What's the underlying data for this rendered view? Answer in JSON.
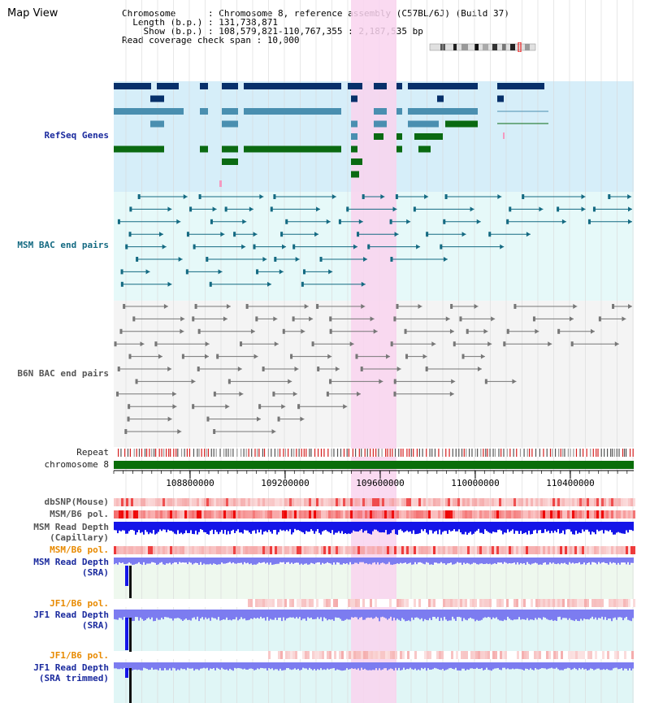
{
  "header": {
    "title": "Map View",
    "info_lines": [
      "Chromosome      : Chromosome 8, reference assembly (C57BL/6J) (Build 37)",
      "  Length (b.p.) : 131,738,871",
      "    Show (b.p.) : 108,579,821-110,767,355 : 2,187,535 bp",
      "Read coverage check span : 10,000"
    ]
  },
  "tracks": {
    "refseq": "RefSeq Genes",
    "msm_bac": "MSM BAC end pairs",
    "b6n_bac": "B6N BAC end pairs",
    "repeat": "Repeat",
    "chromosome": "chromosome 8",
    "dbsnp": "dbSNP(Mouse)",
    "msm_b6_pol": "MSM/B6 pol.",
    "msm_depth_cap_1": "MSM Read Depth",
    "msm_depth_cap_2": "(Capillary)",
    "msm_b6_pol_2": "MSM/B6 pol.",
    "msm_depth_sra_1": "MSM Read Depth",
    "msm_depth_sra_2": "(SRA)",
    "jf1_b6_pol": "JF1/B6 pol.",
    "jf1_depth_sra_1": "JF1 Read Depth",
    "jf1_depth_sra_2": "(SRA)",
    "jf1_b6_pol_2": "JF1/B6 pol.",
    "jf1_depth_trim_1": "JF1 Read Depth",
    "jf1_depth_trim_2": "(SRA trimmed)"
  },
  "axis": {
    "ticks": [
      "108800000",
      "109200000",
      "109600000",
      "110000000",
      "110400000"
    ]
  },
  "colors": {
    "highlight": "#f9d3ef",
    "refseq_bg": "#d6eef9",
    "msm_bg": "#e6f9f9",
    "b6n_bg": "#f4f4f4",
    "gene_dark": "#07306a",
    "gene_mid": "#4a8fb0",
    "gene_green": "#0a6a12",
    "chromosome_bar": "#0a6e0a",
    "depth_blue": "#1515e8",
    "depth_light": "#7c7cf0"
  }
}
